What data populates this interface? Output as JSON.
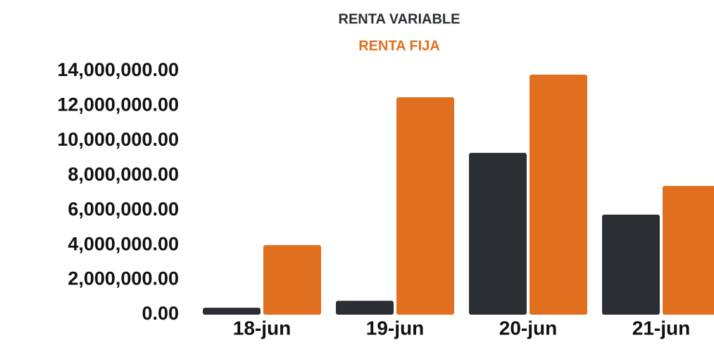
{
  "chart_data": {
    "type": "bar",
    "categories": [
      "18-jun",
      "19-jun",
      "20-jun",
      "21-jun"
    ],
    "series": [
      {
        "name": "RENTA VARIABLE",
        "color": "#2b2f33",
        "values": [
          400000,
          800000,
          9300000,
          5750000
        ]
      },
      {
        "name": "RENTA FIJA",
        "color": "#e07020",
        "values": [
          4000000,
          12500000,
          13800000,
          7400000
        ]
      }
    ],
    "ylim": [
      0,
      14000000
    ],
    "yticks": [
      {
        "value": 0,
        "label": "0.00"
      },
      {
        "value": 2000000,
        "label": "2,000,000.00"
      },
      {
        "value": 4000000,
        "label": "4,000,000.00"
      },
      {
        "value": 6000000,
        "label": "6,000,000.00"
      },
      {
        "value": 8000000,
        "label": "8,000,000.00"
      },
      {
        "value": 10000000,
        "label": "10,000,000.00"
      },
      {
        "value": 12000000,
        "label": "12,000,000.00"
      },
      {
        "value": 14000000,
        "label": "14,000,000.00"
      }
    ],
    "grid": false,
    "legend": "top"
  }
}
